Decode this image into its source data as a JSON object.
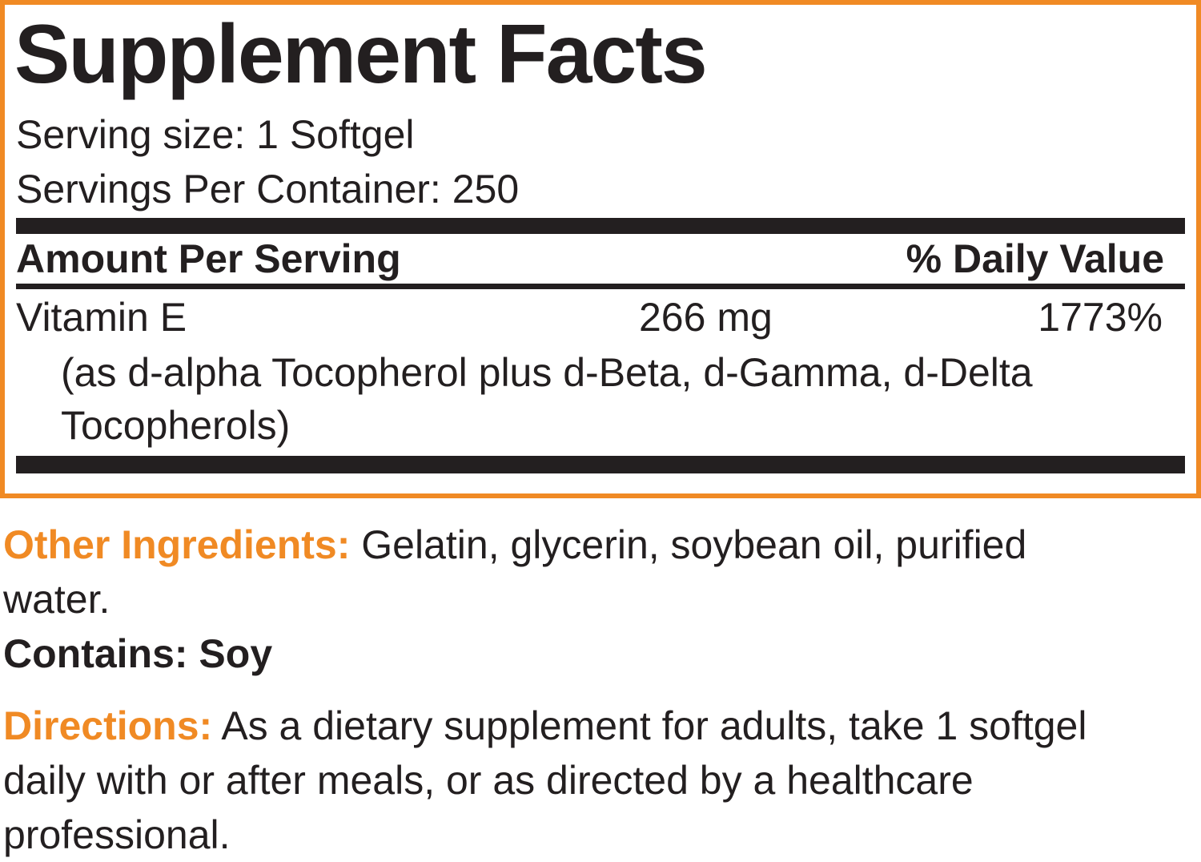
{
  "title": "Supplement Facts",
  "serving_size": "Serving size: 1 Softgel",
  "servings_per_container": "Servings Per Container: 250",
  "table": {
    "header": {
      "amount": "Amount Per Serving",
      "daily_value": "% Daily Value"
    },
    "rows": [
      {
        "name": "Vitamin E",
        "amount": "266 mg",
        "daily_value": "1773%",
        "note": "(as d-alpha Tocopherol plus d-Beta, d-Gamma, d-Delta Tocopherols)"
      }
    ]
  },
  "other_ingredients": {
    "label": "Other Ingredients:",
    "text": "Gelatin, glycerin, soybean oil, purified water."
  },
  "contains": "Contains: Soy",
  "directions": {
    "label": "Directions:",
    "text": "As a dietary supplement for adults, take 1 softgel daily with or after meals, or as directed by a healthcare professional."
  }
}
